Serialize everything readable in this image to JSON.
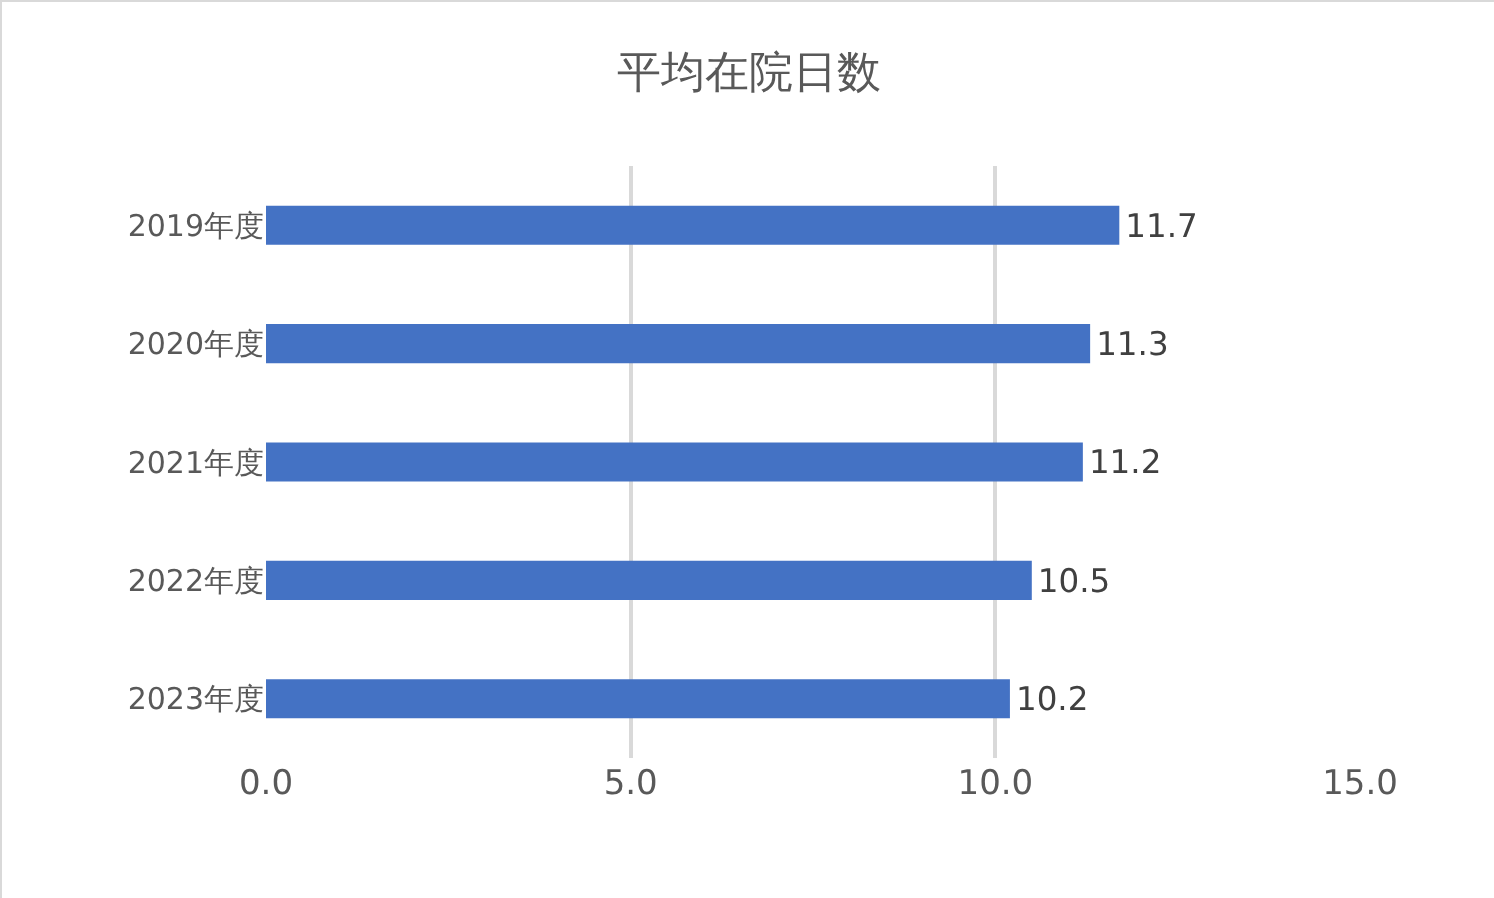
{
  "chart_data": {
    "type": "bar",
    "orientation": "horizontal",
    "title": "平均在院日数",
    "categories": [
      "2019年度",
      "2020年度",
      "2021年度",
      "2022年度",
      "2023年度"
    ],
    "values": [
      11.7,
      11.3,
      11.2,
      10.5,
      10.2
    ],
    "color": "#4472c4",
    "xlim": [
      0,
      15
    ],
    "xticks": [
      {
        "value": 0,
        "label": "0.0"
      },
      {
        "value": 5,
        "label": "5.0"
      },
      {
        "value": 10,
        "label": "10.0"
      },
      {
        "value": 15,
        "label": "15.0"
      }
    ],
    "grid": "x",
    "data_labels": true
  }
}
